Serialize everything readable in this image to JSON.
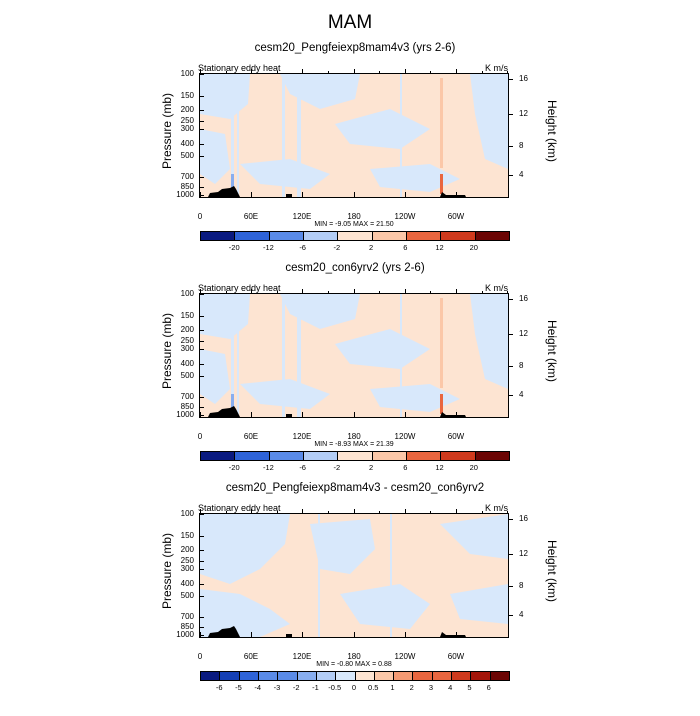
{
  "main_title": "MAM",
  "palette": [
    "#0a1a80",
    "#143fb5",
    "#2e63d8",
    "#5a8be8",
    "#88aef0",
    "#b3cdf6",
    "#d8e8fb",
    "#fde4d2",
    "#fbc7a8",
    "#f59a73",
    "#e9663f",
    "#cf3a1d",
    "#a3150a",
    "#6b0504"
  ],
  "chart_data": [
    {
      "type": "heatmap",
      "title": "cesm20_Pengfeiexp8mam4v3 (yrs 2-6)",
      "left_string": "Stationary eddy heat",
      "units": "K m/s",
      "ylabel": "Pressure (mb)",
      "y2label": "Height (km)",
      "pressure_ticks": [
        "100",
        "150",
        "200",
        "250",
        "300",
        "400",
        "500",
        "700",
        "850",
        "1000"
      ],
      "height_ticks": [
        "16",
        "12",
        "8",
        "4"
      ],
      "x_ticks": [
        "0",
        "60E",
        "120E",
        "180",
        "120W",
        "60W"
      ],
      "minmax": "MIN = -9.05  MAX = 21.50",
      "colorbar_labels": [
        "-20",
        "-12",
        "-6",
        "-2",
        "2",
        "6",
        "12",
        "20"
      ],
      "min": -9.05,
      "max": 21.5
    },
    {
      "type": "heatmap",
      "title": "cesm20_con6yrv2 (yrs 2-6)",
      "left_string": "Stationary eddy heat",
      "units": "K m/s",
      "ylabel": "Pressure (mb)",
      "y2label": "Height (km)",
      "pressure_ticks": [
        "100",
        "150",
        "200",
        "250",
        "300",
        "400",
        "500",
        "700",
        "850",
        "1000"
      ],
      "height_ticks": [
        "16",
        "12",
        "8",
        "4"
      ],
      "x_ticks": [
        "0",
        "60E",
        "120E",
        "180",
        "120W",
        "60W"
      ],
      "minmax": "MIN = -8.93  MAX = 21.39",
      "colorbar_labels": [
        "-20",
        "-12",
        "-6",
        "-2",
        "2",
        "6",
        "12",
        "20"
      ],
      "min": -8.93,
      "max": 21.39
    },
    {
      "type": "heatmap",
      "title": "cesm20_Pengfeiexp8mam4v3 - cesm20_con6yrv2",
      "left_string": "Stationary eddy heat",
      "units": "K m/s",
      "ylabel": "Pressure (mb)",
      "y2label": "Height (km)",
      "pressure_ticks": [
        "100",
        "150",
        "200",
        "250",
        "300",
        "400",
        "500",
        "700",
        "850",
        "1000"
      ],
      "height_ticks": [
        "16",
        "12",
        "8",
        "4"
      ],
      "x_ticks": [
        "0",
        "60E",
        "120E",
        "180",
        "120W",
        "60W"
      ],
      "minmax": "MIN = -0.80  MAX =  0.88",
      "colorbar_labels": [
        "-6",
        "-5",
        "-4",
        "-3",
        "-2",
        "-1",
        "-0.5",
        "0",
        "0.5",
        "1",
        "2",
        "3",
        "4",
        "5",
        "6"
      ],
      "min": -0.8,
      "max": 0.88
    }
  ]
}
